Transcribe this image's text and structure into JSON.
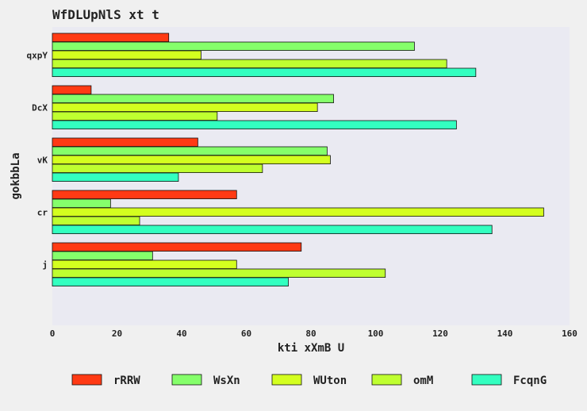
{
  "chart_data": {
    "type": "bar",
    "orientation": "horizontal",
    "title": "WfDLUpNlS xt t",
    "xlabel": "kti xXmB  U",
    "ylabel": "gokbbLa",
    "xlim": [
      0,
      160
    ],
    "xticks": [
      0,
      20,
      40,
      60,
      80,
      100,
      120,
      140,
      160
    ],
    "categories": [
      "qxpY",
      "DcX",
      "vK",
      "cr",
      "j"
    ],
    "legend_position": "bottom",
    "grid": false,
    "series": [
      {
        "name": "rRRW",
        "color": "#ff3a14",
        "values": [
          36,
          12,
          45,
          57,
          77
        ]
      },
      {
        "name": "WsXn",
        "color": "#85ff6b",
        "values": [
          112,
          87,
          85,
          18,
          31
        ]
      },
      {
        "name": "WUton",
        "color": "#d4ff1f",
        "values": [
          46,
          82,
          86,
          152,
          57
        ]
      },
      {
        "name": "omM",
        "color": "#bfff30",
        "values": [
          122,
          51,
          65,
          27,
          103
        ]
      },
      {
        "name": "FcqnG",
        "color": "#33ffc0",
        "values": [
          131,
          125,
          39,
          136,
          73
        ]
      }
    ]
  }
}
